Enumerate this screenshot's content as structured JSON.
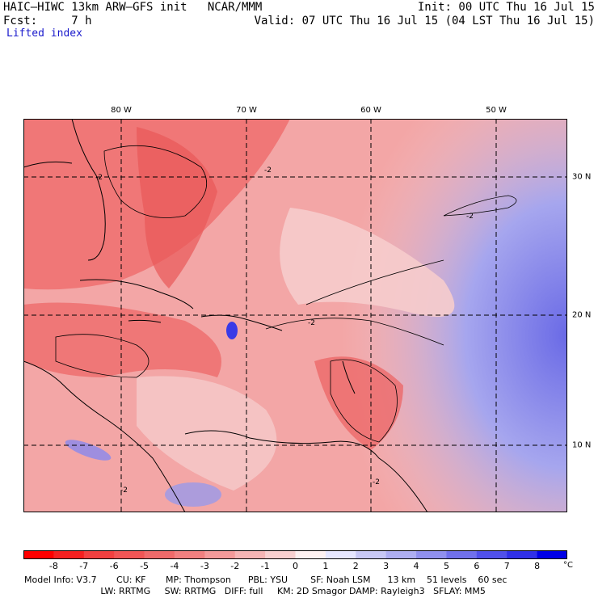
{
  "header": {
    "model_line": "HAIC–HIWC 13km ARW–GFS init   NCAR/MMM",
    "init": "Init: 00 UTC Thu 16 Jul 15",
    "fcst": "Fcst:     7 h",
    "valid": "Valid: 07 UTC Thu 16 Jul 15 (04 LST Thu 16 Jul 15)",
    "field": "Lifted index"
  },
  "map": {
    "lon_labels": [
      "80 W",
      "70 W",
      "60 W",
      "50 W"
    ],
    "lat_labels": [
      "30 N",
      "20 N",
      "10 N"
    ],
    "contour_label": "-2"
  },
  "colorbar": {
    "ticks": [
      "-8",
      "-7",
      "-6",
      "-5",
      "-4",
      "-3",
      "-2",
      "-1",
      "0",
      "1",
      "2",
      "3",
      "4",
      "5",
      "6",
      "7",
      "8"
    ],
    "unit": "°C",
    "colors": [
      "#ff0000",
      "#f52020",
      "#f24040",
      "#f05555",
      "#ef6a6a",
      "#f08080",
      "#f39a9a",
      "#f5b5b5",
      "#f8d0d0",
      "#fdf0f0",
      "#e6e6ff",
      "#c8c8f5",
      "#aeaef2",
      "#9090ee",
      "#7070ec",
      "#5050ea",
      "#3030e8",
      "#0000e6"
    ]
  },
  "info": {
    "line1": "Model Info: V3.7       CU: KF       MP: Thompson      PBL: YSU        SF: Noah LSM      13 km    51 levels    60 sec",
    "line2": "                           LW: RRTMG     SW: RRTMG   DIFF: full     KM: 2D Smagor DAMP: Rayleigh3   SFLAY: MM5"
  }
}
